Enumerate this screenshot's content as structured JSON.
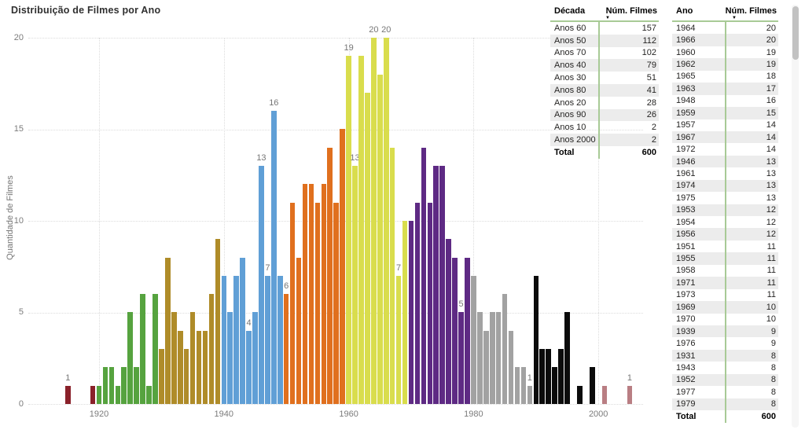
{
  "chart_data": {
    "type": "bar",
    "title": "Distribuição de Filmes por Ano",
    "xlabel": "",
    "ylabel": "Quantidade de Filmes",
    "ylim": [
      0,
      20
    ],
    "yticks": [
      0,
      5,
      10,
      15,
      20
    ],
    "xticks": [
      1920,
      1940,
      1960,
      1980,
      2000
    ],
    "grid": true,
    "legend": "none",
    "decade_colors": {
      "Anos 10": "#8a212a",
      "Anos 20": "#56a33f",
      "Anos 30": "#af8c29",
      "Anos 40": "#609fd6",
      "Anos 50": "#e0701e",
      "Anos 60": "#d9dd4d",
      "Anos 70": "#5e2a84",
      "Anos 80": "#a2a2a2",
      "Anos 90": "#0b0b0b",
      "Anos 2000": "#b97e83"
    },
    "points": [
      {
        "year": 1915,
        "value": 1,
        "decade": "Anos 10",
        "label": "1"
      },
      {
        "year": 1919,
        "value": 1,
        "decade": "Anos 10"
      },
      {
        "year": 1920,
        "value": 1,
        "decade": "Anos 20"
      },
      {
        "year": 1921,
        "value": 2,
        "decade": "Anos 20"
      },
      {
        "year": 1922,
        "value": 2,
        "decade": "Anos 20"
      },
      {
        "year": 1923,
        "value": 1,
        "decade": "Anos 20"
      },
      {
        "year": 1924,
        "value": 2,
        "decade": "Anos 20"
      },
      {
        "year": 1925,
        "value": 5,
        "decade": "Anos 20"
      },
      {
        "year": 1926,
        "value": 2,
        "decade": "Anos 20"
      },
      {
        "year": 1927,
        "value": 6,
        "decade": "Anos 20"
      },
      {
        "year": 1928,
        "value": 1,
        "decade": "Anos 20"
      },
      {
        "year": 1929,
        "value": 6,
        "decade": "Anos 20"
      },
      {
        "year": 1930,
        "value": 3,
        "decade": "Anos 30"
      },
      {
        "year": 1931,
        "value": 8,
        "decade": "Anos 30"
      },
      {
        "year": 1932,
        "value": 5,
        "decade": "Anos 30"
      },
      {
        "year": 1933,
        "value": 4,
        "decade": "Anos 30"
      },
      {
        "year": 1934,
        "value": 3,
        "decade": "Anos 30"
      },
      {
        "year": 1935,
        "value": 5,
        "decade": "Anos 30"
      },
      {
        "year": 1936,
        "value": 4,
        "decade": "Anos 30"
      },
      {
        "year": 1937,
        "value": 4,
        "decade": "Anos 30"
      },
      {
        "year": 1938,
        "value": 6,
        "decade": "Anos 30"
      },
      {
        "year": 1939,
        "value": 9,
        "decade": "Anos 30"
      },
      {
        "year": 1940,
        "value": 7,
        "decade": "Anos 40"
      },
      {
        "year": 1941,
        "value": 5,
        "decade": "Anos 40"
      },
      {
        "year": 1942,
        "value": 7,
        "decade": "Anos 40"
      },
      {
        "year": 1943,
        "value": 8,
        "decade": "Anos 40"
      },
      {
        "year": 1944,
        "value": 4,
        "decade": "Anos 40",
        "label": "4"
      },
      {
        "year": 1945,
        "value": 5,
        "decade": "Anos 40"
      },
      {
        "year": 1946,
        "value": 13,
        "decade": "Anos 40",
        "label": "13"
      },
      {
        "year": 1947,
        "value": 7,
        "decade": "Anos 40",
        "label": "7"
      },
      {
        "year": 1948,
        "value": 16,
        "decade": "Anos 40",
        "label": "16"
      },
      {
        "year": 1949,
        "value": 7,
        "decade": "Anos 40"
      },
      {
        "year": 1950,
        "value": 6,
        "decade": "Anos 50",
        "label": "6"
      },
      {
        "year": 1951,
        "value": 11,
        "decade": "Anos 50"
      },
      {
        "year": 1952,
        "value": 8,
        "decade": "Anos 50"
      },
      {
        "year": 1953,
        "value": 12,
        "decade": "Anos 50"
      },
      {
        "year": 1954,
        "value": 12,
        "decade": "Anos 50"
      },
      {
        "year": 1955,
        "value": 11,
        "decade": "Anos 50"
      },
      {
        "year": 1956,
        "value": 12,
        "decade": "Anos 50"
      },
      {
        "year": 1957,
        "value": 14,
        "decade": "Anos 50"
      },
      {
        "year": 1958,
        "value": 11,
        "decade": "Anos 50"
      },
      {
        "year": 1959,
        "value": 15,
        "decade": "Anos 50"
      },
      {
        "year": 1960,
        "value": 19,
        "decade": "Anos 60",
        "label": "19"
      },
      {
        "year": 1961,
        "value": 13,
        "decade": "Anos 60",
        "label": "13"
      },
      {
        "year": 1962,
        "value": 19,
        "decade": "Anos 60"
      },
      {
        "year": 1963,
        "value": 17,
        "decade": "Anos 60"
      },
      {
        "year": 1964,
        "value": 20,
        "decade": "Anos 60",
        "label": "20"
      },
      {
        "year": 1965,
        "value": 18,
        "decade": "Anos 60"
      },
      {
        "year": 1966,
        "value": 20,
        "decade": "Anos 60",
        "label": "20"
      },
      {
        "year": 1967,
        "value": 14,
        "decade": "Anos 60"
      },
      {
        "year": 1968,
        "value": 7,
        "decade": "Anos 60",
        "label": "7"
      },
      {
        "year": 1969,
        "value": 10,
        "decade": "Anos 60"
      },
      {
        "year": 1970,
        "value": 10,
        "decade": "Anos 70"
      },
      {
        "year": 1971,
        "value": 11,
        "decade": "Anos 70"
      },
      {
        "year": 1972,
        "value": 14,
        "decade": "Anos 70"
      },
      {
        "year": 1973,
        "value": 11,
        "decade": "Anos 70"
      },
      {
        "year": 1974,
        "value": 13,
        "decade": "Anos 70"
      },
      {
        "year": 1975,
        "value": 13,
        "decade": "Anos 70"
      },
      {
        "year": 1976,
        "value": 9,
        "decade": "Anos 70"
      },
      {
        "year": 1977,
        "value": 8,
        "decade": "Anos 70"
      },
      {
        "year": 1978,
        "value": 5,
        "decade": "Anos 70",
        "label": "5"
      },
      {
        "year": 1979,
        "value": 8,
        "decade": "Anos 70"
      },
      {
        "year": 1980,
        "value": 7,
        "decade": "Anos 80"
      },
      {
        "year": 1981,
        "value": 5,
        "decade": "Anos 80"
      },
      {
        "year": 1982,
        "value": 4,
        "decade": "Anos 80"
      },
      {
        "year": 1983,
        "value": 5,
        "decade": "Anos 80"
      },
      {
        "year": 1984,
        "value": 5,
        "decade": "Anos 80"
      },
      {
        "year": 1985,
        "value": 6,
        "decade": "Anos 80"
      },
      {
        "year": 1986,
        "value": 4,
        "decade": "Anos 80"
      },
      {
        "year": 1987,
        "value": 2,
        "decade": "Anos 80"
      },
      {
        "year": 1988,
        "value": 2,
        "decade": "Anos 80"
      },
      {
        "year": 1989,
        "value": 1,
        "decade": "Anos 80",
        "label": "1"
      },
      {
        "year": 1990,
        "value": 7,
        "decade": "Anos 90"
      },
      {
        "year": 1991,
        "value": 3,
        "decade": "Anos 90"
      },
      {
        "year": 1992,
        "value": 3,
        "decade": "Anos 90"
      },
      {
        "year": 1993,
        "value": 2,
        "decade": "Anos 90"
      },
      {
        "year": 1994,
        "value": 3,
        "decade": "Anos 90"
      },
      {
        "year": 1995,
        "value": 5,
        "decade": "Anos 90"
      },
      {
        "year": 1997,
        "value": 1,
        "decade": "Anos 90"
      },
      {
        "year": 1999,
        "value": 2,
        "decade": "Anos 90"
      },
      {
        "year": 2001,
        "value": 1,
        "decade": "Anos 2000"
      },
      {
        "year": 2005,
        "value": 1,
        "decade": "Anos 2000",
        "label": "1"
      }
    ]
  },
  "decade_table": {
    "headers": [
      "Década",
      "Núm. Filmes"
    ],
    "sort_icon": "▼",
    "rows": [
      [
        "Anos 60",
        "157"
      ],
      [
        "Anos 50",
        "112"
      ],
      [
        "Anos 70",
        "102"
      ],
      [
        "Anos 40",
        "79"
      ],
      [
        "Anos 30",
        "51"
      ],
      [
        "Anos 80",
        "41"
      ],
      [
        "Anos 20",
        "28"
      ],
      [
        "Anos 90",
        "26"
      ],
      [
        "Anos 10",
        "2"
      ],
      [
        "Anos 2000",
        "2"
      ]
    ],
    "total_label": "Total",
    "total_value": "600"
  },
  "year_table": {
    "headers": [
      "Ano",
      "Núm. Filmes"
    ],
    "sort_icon": "▼",
    "rows": [
      [
        "1964",
        "20"
      ],
      [
        "1966",
        "20"
      ],
      [
        "1960",
        "19"
      ],
      [
        "1962",
        "19"
      ],
      [
        "1965",
        "18"
      ],
      [
        "1963",
        "17"
      ],
      [
        "1948",
        "16"
      ],
      [
        "1959",
        "15"
      ],
      [
        "1957",
        "14"
      ],
      [
        "1967",
        "14"
      ],
      [
        "1972",
        "14"
      ],
      [
        "1946",
        "13"
      ],
      [
        "1961",
        "13"
      ],
      [
        "1974",
        "13"
      ],
      [
        "1975",
        "13"
      ],
      [
        "1953",
        "12"
      ],
      [
        "1954",
        "12"
      ],
      [
        "1956",
        "12"
      ],
      [
        "1951",
        "11"
      ],
      [
        "1955",
        "11"
      ],
      [
        "1958",
        "11"
      ],
      [
        "1971",
        "11"
      ],
      [
        "1973",
        "11"
      ],
      [
        "1969",
        "10"
      ],
      [
        "1970",
        "10"
      ],
      [
        "1939",
        "9"
      ],
      [
        "1976",
        "9"
      ],
      [
        "1931",
        "8"
      ],
      [
        "1943",
        "8"
      ],
      [
        "1952",
        "8"
      ],
      [
        "1977",
        "8"
      ],
      [
        "1979",
        "8"
      ]
    ],
    "total_label": "Total",
    "total_value": "600"
  }
}
